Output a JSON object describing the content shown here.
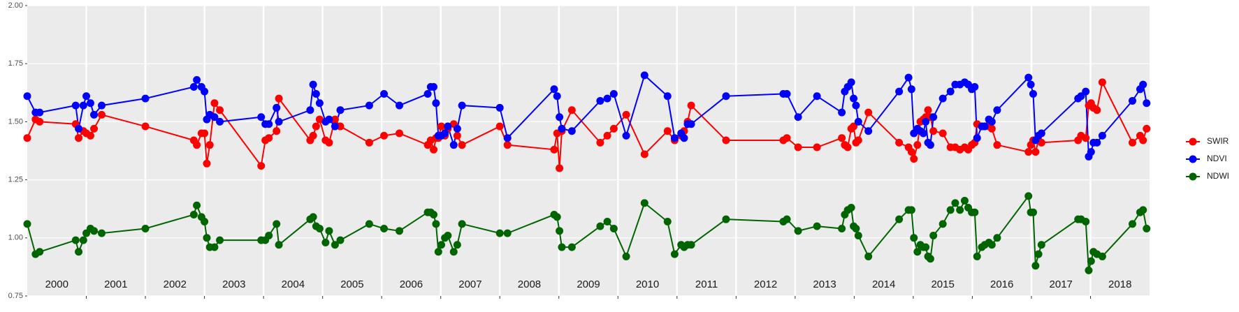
{
  "chart_data": {
    "type": "line",
    "x": [
      2000.0,
      2000.14,
      2000.21,
      2000.82,
      2000.87,
      2000.95,
      2001.0,
      2001.07,
      2001.13,
      2001.26,
      2002.0,
      2002.82,
      2002.87,
      2002.95,
      2003.0,
      2003.04,
      2003.09,
      2003.17,
      2003.26,
      2003.96,
      2004.03,
      2004.09,
      2004.22,
      2004.26,
      2004.79,
      2004.84,
      2004.89,
      2004.95,
      2005.05,
      2005.11,
      2005.21,
      2005.3,
      2005.79,
      2006.04,
      2006.3,
      2006.78,
      2006.83,
      2006.88,
      2006.92,
      2006.96,
      2007.01,
      2007.07,
      2007.12,
      2007.22,
      2007.28,
      2007.36,
      2008.0,
      2008.13,
      2008.92,
      2008.97,
      2009.01,
      2009.05,
      2009.22,
      2009.7,
      2009.82,
      2009.93,
      2010.14,
      2010.45,
      2010.84,
      2010.96,
      2011.07,
      2011.12,
      2011.18,
      2011.24,
      2011.83,
      2012.8,
      2012.86,
      2013.05,
      2013.37,
      2013.79,
      2013.84,
      2013.89,
      2013.95,
      2013.99,
      2014.03,
      2014.07,
      2014.24,
      2014.76,
      2014.92,
      2014.97,
      2015.01,
      2015.07,
      2015.12,
      2015.17,
      2015.21,
      2015.25,
      2015.29,
      2015.34,
      2015.5,
      2015.63,
      2015.71,
      2015.79,
      2015.87,
      2015.93,
      2015.99,
      2016.04,
      2016.08,
      2016.16,
      2016.21,
      2016.28,
      2016.33,
      2016.42,
      2016.95,
      2016.99,
      2017.03,
      2017.07,
      2017.12,
      2017.17,
      2017.79,
      2017.84,
      2017.92,
      2017.97,
      2018.01,
      2018.05,
      2018.11,
      2018.2,
      2018.71,
      2018.84,
      2018.89,
      2018.95
    ],
    "series": [
      {
        "name": "SWIR",
        "color": "#ff0000",
        "values": [
          1.43,
          1.51,
          1.5,
          1.49,
          1.43,
          1.46,
          1.45,
          1.44,
          1.47,
          1.53,
          1.48,
          1.42,
          1.4,
          1.45,
          1.45,
          1.32,
          1.4,
          1.58,
          1.55,
          1.31,
          1.42,
          1.43,
          1.46,
          1.6,
          1.42,
          1.44,
          1.48,
          1.51,
          1.42,
          1.41,
          1.51,
          1.48,
          1.41,
          1.44,
          1.45,
          1.4,
          1.42,
          1.38,
          1.43,
          1.43,
          1.48,
          1.44,
          1.47,
          1.49,
          1.44,
          1.4,
          1.48,
          1.4,
          1.38,
          1.45,
          1.3,
          1.46,
          1.55,
          1.41,
          1.44,
          1.47,
          1.53,
          1.36,
          1.46,
          1.42,
          1.44,
          1.46,
          1.5,
          1.57,
          1.42,
          1.42,
          1.43,
          1.39,
          1.39,
          1.43,
          1.4,
          1.39,
          1.47,
          1.48,
          1.41,
          1.42,
          1.54,
          1.41,
          1.39,
          1.37,
          1.34,
          1.4,
          1.5,
          1.51,
          1.52,
          1.55,
          1.52,
          1.46,
          1.45,
          1.39,
          1.39,
          1.38,
          1.39,
          1.38,
          1.4,
          1.41,
          1.49,
          1.48,
          1.48,
          1.48,
          1.47,
          1.4,
          1.37,
          1.4,
          1.42,
          1.37,
          1.42,
          1.41,
          1.42,
          1.44,
          1.43,
          1.57,
          1.58,
          1.56,
          1.55,
          1.67,
          1.41,
          1.44,
          1.42,
          1.47
        ]
      },
      {
        "name": "NDVI",
        "color": "#0000ff",
        "values": [
          1.61,
          1.54,
          1.54,
          1.57,
          1.47,
          1.57,
          1.61,
          1.58,
          1.53,
          1.57,
          1.6,
          1.65,
          1.68,
          1.65,
          1.63,
          1.51,
          1.53,
          1.52,
          1.5,
          1.52,
          1.49,
          1.49,
          1.56,
          1.5,
          1.55,
          1.66,
          1.62,
          1.58,
          1.5,
          1.51,
          1.48,
          1.55,
          1.57,
          1.62,
          1.57,
          1.62,
          1.65,
          1.65,
          1.58,
          1.44,
          1.44,
          1.45,
          1.48,
          1.4,
          1.47,
          1.57,
          1.56,
          1.43,
          1.64,
          1.61,
          1.52,
          1.47,
          1.46,
          1.59,
          1.6,
          1.62,
          1.44,
          1.7,
          1.61,
          1.43,
          1.45,
          1.43,
          1.49,
          1.49,
          1.61,
          1.62,
          1.62,
          1.52,
          1.61,
          1.54,
          1.63,
          1.65,
          1.67,
          1.6,
          1.57,
          1.5,
          1.46,
          1.63,
          1.69,
          1.64,
          1.45,
          1.47,
          1.46,
          1.45,
          1.5,
          1.41,
          1.4,
          1.52,
          1.6,
          1.63,
          1.66,
          1.66,
          1.67,
          1.66,
          1.64,
          1.65,
          1.43,
          1.48,
          1.48,
          1.51,
          1.5,
          1.55,
          1.69,
          1.66,
          1.62,
          1.42,
          1.44,
          1.45,
          1.6,
          1.61,
          1.63,
          1.35,
          1.37,
          1.41,
          1.41,
          1.44,
          1.59,
          1.64,
          1.66,
          1.58
        ]
      },
      {
        "name": "NDWI",
        "color": "#006400",
        "values": [
          1.06,
          0.93,
          0.94,
          0.99,
          0.94,
          0.99,
          1.02,
          1.04,
          1.03,
          1.02,
          1.04,
          1.1,
          1.14,
          1.09,
          1.07,
          1.0,
          0.96,
          0.96,
          0.99,
          0.99,
          0.99,
          1.01,
          1.06,
          0.97,
          1.08,
          1.09,
          1.05,
          1.04,
          0.98,
          1.03,
          0.97,
          0.99,
          1.06,
          1.04,
          1.03,
          1.11,
          1.11,
          1.1,
          1.06,
          0.94,
          0.97,
          1.0,
          1.01,
          0.94,
          0.97,
          1.06,
          1.02,
          1.02,
          1.1,
          1.09,
          1.03,
          0.96,
          0.96,
          1.05,
          1.07,
          1.04,
          0.92,
          1.15,
          1.07,
          0.93,
          0.97,
          0.96,
          0.97,
          0.97,
          1.08,
          1.07,
          1.08,
          1.03,
          1.05,
          1.04,
          1.1,
          1.12,
          1.13,
          1.05,
          1.04,
          1.01,
          0.92,
          1.08,
          1.12,
          1.12,
          1.0,
          0.94,
          0.97,
          0.96,
          0.96,
          0.92,
          0.91,
          1.01,
          1.06,
          1.12,
          1.15,
          1.12,
          1.16,
          1.13,
          1.11,
          1.11,
          0.92,
          0.96,
          0.97,
          0.98,
          0.97,
          1.0,
          1.18,
          1.11,
          1.11,
          0.88,
          0.93,
          0.97,
          1.08,
          1.08,
          1.07,
          0.86,
          0.9,
          0.94,
          0.93,
          0.92,
          1.06,
          1.11,
          1.12,
          1.04
        ]
      }
    ],
    "xlim": [
      2000,
      2019
    ],
    "xticks": [
      2000,
      2001,
      2002,
      2003,
      2004,
      2005,
      2006,
      2007,
      2008,
      2009,
      2010,
      2011,
      2012,
      2013,
      2014,
      2015,
      2016,
      2017,
      2018
    ],
    "ylim": [
      0.75,
      2.0
    ],
    "yticks": [
      {
        "value": 0.75,
        "label": "0.75"
      },
      {
        "value": 1.0,
        "label": "1.00"
      },
      {
        "value": 1.25,
        "label": "1.25"
      },
      {
        "value": 1.5,
        "label": "1.50"
      },
      {
        "value": 1.75,
        "label": "1.75"
      },
      {
        "value": 2.0,
        "label": "2.00"
      }
    ],
    "grid": true,
    "legend": "right"
  }
}
